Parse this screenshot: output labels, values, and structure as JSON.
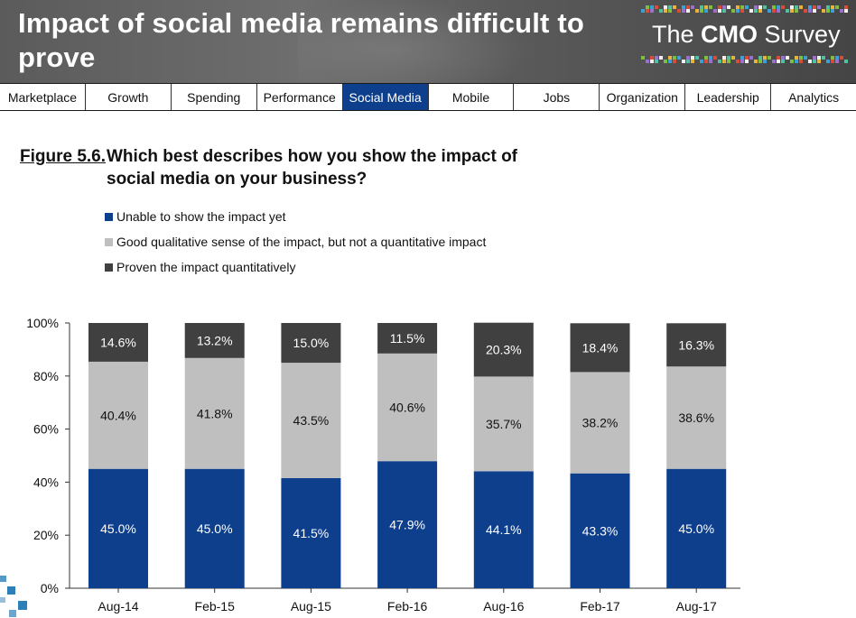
{
  "header": {
    "title": "Impact of social media remains difficult to prove",
    "brand_prefix": "The ",
    "brand_bold": "CMO",
    "brand_suffix": " Survey"
  },
  "nav": {
    "tabs": [
      {
        "label": "Marketplace",
        "active": false
      },
      {
        "label": "Growth",
        "active": false
      },
      {
        "label": "Spending",
        "active": false
      },
      {
        "label": "Performance",
        "active": false
      },
      {
        "label": "Social Media",
        "active": true
      },
      {
        "label": "Mobile",
        "active": false
      },
      {
        "label": "Jobs",
        "active": false
      },
      {
        "label": "Organization",
        "active": false
      },
      {
        "label": "Leadership",
        "active": false
      },
      {
        "label": "Analytics",
        "active": false
      }
    ]
  },
  "figure": {
    "label": "Figure 5.6",
    "label_suffix": ".",
    "question": "Which best describes how you show the impact of social media on your business?"
  },
  "colors": {
    "unable": "#0e3f8c",
    "qualitative": "#bfbfbf",
    "proven": "#404040",
    "active_tab": "#0e3f8c"
  },
  "chart_data": {
    "type": "bar",
    "stacked": true,
    "categories": [
      "Aug-14",
      "Feb-15",
      "Aug-15",
      "Feb-16",
      "Aug-16",
      "Feb-17",
      "Aug-17"
    ],
    "series": [
      {
        "name": "Unable to show the impact yet",
        "values": [
          45.0,
          45.0,
          41.5,
          47.9,
          44.1,
          43.3,
          45.0
        ],
        "labels": [
          "45.0%",
          "45.0%",
          "41.5%",
          "47.9%",
          "44.1%",
          "43.3%",
          "45.0%"
        ]
      },
      {
        "name": "Good qualitative sense of the impact, but not a quantitative impact",
        "values": [
          40.4,
          41.8,
          43.5,
          40.6,
          35.7,
          38.2,
          38.6
        ],
        "labels": [
          "40.4%",
          "41.8%",
          "43.5%",
          "40.6%",
          "35.7%",
          "38.2%",
          "38.6%"
        ]
      },
      {
        "name": "Proven the impact quantitatively",
        "values": [
          14.6,
          13.2,
          15.0,
          11.5,
          20.3,
          18.4,
          16.3
        ],
        "labels": [
          "14.6%",
          "13.2%",
          "15.0%",
          "11.5%",
          "20.3%",
          "18.4%",
          "16.3%"
        ]
      }
    ],
    "ylim": [
      0,
      100
    ],
    "yticks": [
      "0%",
      "20%",
      "40%",
      "60%",
      "80%",
      "100%"
    ],
    "legend_position": "top-left",
    "grid": false
  }
}
